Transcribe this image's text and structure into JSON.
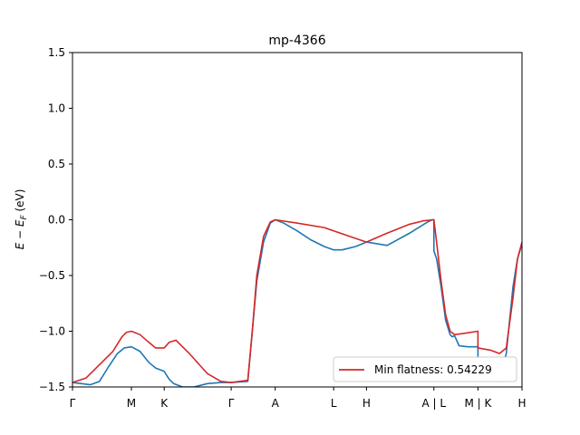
{
  "chart_data": {
    "type": "line",
    "title": "mp-4366",
    "ylabel": "E − E",
    "ylabel_sub": "F",
    "ylabel_unit": " (eV)",
    "xlabel": "",
    "ylim": [
      -1.5,
      1.5
    ],
    "xlim": [
      0,
      1
    ],
    "grid": false,
    "legend_position": "lower-right",
    "legend_label": "Min flatness: 0.54229",
    "y_ticks": [
      -1.5,
      -1.0,
      -0.5,
      0.0,
      0.5,
      1.0,
      1.5
    ],
    "y_tick_labels": [
      "−1.5",
      "−1.0",
      "−0.5",
      "0.0",
      "0.5",
      "1.0",
      "1.5"
    ],
    "x_ticks": [
      0.0,
      0.131,
      0.204,
      0.353,
      0.451,
      0.581,
      0.654,
      0.804,
      0.902,
      1.0
    ],
    "x_tick_labels": [
      "Γ",
      "M",
      "K",
      "Γ",
      "A",
      "L",
      "H",
      "A | L",
      "M | K",
      "H"
    ],
    "series": [
      {
        "name": "",
        "color": "#1f77b4",
        "x": [
          0.0,
          0.04,
          0.06,
          0.08,
          0.1,
          0.115,
          0.131,
          0.15,
          0.17,
          0.185,
          0.204,
          0.215,
          0.225,
          0.245,
          0.27,
          0.3,
          0.33,
          0.353,
          0.39,
          0.4,
          0.41,
          0.425,
          0.44,
          0.451,
          0.47,
          0.5,
          0.53,
          0.56,
          0.581,
          0.6,
          0.63,
          0.654,
          0.7,
          0.75,
          0.79,
          0.8,
          0.804,
          0.804,
          0.81,
          0.82,
          0.83,
          0.84,
          0.845,
          0.85,
          0.86,
          0.88,
          0.902,
          0.902,
          0.91,
          0.92,
          0.935,
          0.95,
          0.965,
          0.98,
          0.99,
          1.0
        ],
        "y": [
          -1.46,
          -1.48,
          -1.45,
          -1.32,
          -1.2,
          -1.15,
          -1.14,
          -1.18,
          -1.28,
          -1.33,
          -1.36,
          -1.43,
          -1.47,
          -1.5,
          -1.5,
          -1.47,
          -1.46,
          -1.46,
          -1.45,
          -1.0,
          -0.55,
          -0.2,
          -0.03,
          0.0,
          -0.03,
          -0.1,
          -0.18,
          -0.24,
          -0.27,
          -0.27,
          -0.24,
          -0.2,
          -0.23,
          -0.12,
          -0.02,
          0.0,
          0.0,
          -0.28,
          -0.35,
          -0.6,
          -0.9,
          -1.03,
          -1.05,
          -1.04,
          -1.13,
          -1.14,
          -1.14,
          -1.3,
          -1.32,
          -1.38,
          -1.43,
          -1.45,
          -1.2,
          -0.6,
          -0.35,
          -0.22
        ]
      },
      {
        "name": "Min flatness: 0.54229",
        "color": "#d62728",
        "x": [
          0.0,
          0.03,
          0.06,
          0.09,
          0.11,
          0.12,
          0.131,
          0.15,
          0.17,
          0.185,
          0.204,
          0.215,
          0.23,
          0.26,
          0.3,
          0.33,
          0.353,
          0.39,
          0.4,
          0.41,
          0.425,
          0.44,
          0.451,
          0.5,
          0.56,
          0.581,
          0.61,
          0.654,
          0.7,
          0.75,
          0.78,
          0.804,
          0.804,
          0.81,
          0.82,
          0.83,
          0.84,
          0.85,
          0.87,
          0.902,
          0.902,
          0.93,
          0.95,
          0.965,
          0.98,
          0.99,
          1.0
        ],
        "y": [
          -1.46,
          -1.42,
          -1.3,
          -1.18,
          -1.05,
          -1.01,
          -1.0,
          -1.03,
          -1.1,
          -1.15,
          -1.15,
          -1.1,
          -1.08,
          -1.2,
          -1.38,
          -1.45,
          -1.46,
          -1.44,
          -1.0,
          -0.5,
          -0.15,
          -0.02,
          0.0,
          -0.03,
          -0.07,
          -0.1,
          -0.14,
          -0.2,
          -0.12,
          -0.04,
          -0.01,
          0.0,
          0.0,
          -0.2,
          -0.55,
          -0.85,
          -1.0,
          -1.03,
          -1.02,
          -1.0,
          -1.15,
          -1.17,
          -1.2,
          -1.15,
          -0.7,
          -0.35,
          -0.2
        ]
      }
    ]
  }
}
